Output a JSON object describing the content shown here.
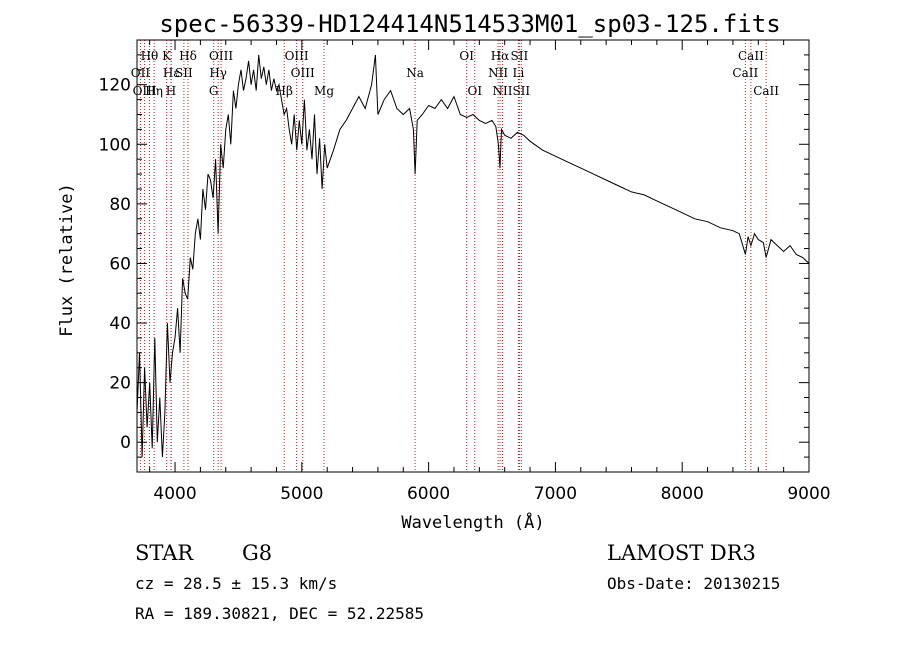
{
  "chart_data": {
    "type": "line",
    "title": "spec-56339-HD124414N514533M01_sp03-125.fits",
    "xlabel": "Wavelength (Å)",
    "ylabel": "Flux (relative)",
    "xlim": [
      3700,
      9000
    ],
    "ylim": [
      -10,
      135
    ],
    "xticks": [
      4000,
      5000,
      6000,
      7000,
      8000,
      9000
    ],
    "xtick_labels": [
      "4000",
      "5000",
      "6000",
      "7000",
      "8000",
      "9000"
    ],
    "yticks": [
      0,
      20,
      40,
      60,
      80,
      100,
      120
    ],
    "ytick_labels": [
      "0",
      "20",
      "40",
      "60",
      "80",
      "100",
      "120"
    ],
    "grid": false,
    "series": [
      {
        "color": "#000000",
        "x": [
          3700,
          3720,
          3740,
          3760,
          3780,
          3800,
          3820,
          3840,
          3860,
          3880,
          3900,
          3920,
          3940,
          3960,
          3980,
          4000,
          4020,
          4040,
          4060,
          4080,
          4100,
          4120,
          4140,
          4160,
          4180,
          4200,
          4220,
          4240,
          4260,
          4280,
          4300,
          4320,
          4340,
          4360,
          4380,
          4400,
          4420,
          4440,
          4460,
          4480,
          4500,
          4520,
          4540,
          4560,
          4580,
          4600,
          4620,
          4640,
          4660,
          4680,
          4700,
          4720,
          4740,
          4760,
          4780,
          4800,
          4820,
          4840,
          4860,
          4880,
          4900,
          4920,
          4940,
          4960,
          4980,
          5000,
          5020,
          5040,
          5060,
          5080,
          5100,
          5120,
          5140,
          5160,
          5180,
          5200,
          5250,
          5300,
          5350,
          5400,
          5450,
          5500,
          5550,
          5580,
          5600,
          5650,
          5700,
          5750,
          5800,
          5850,
          5880,
          5893,
          5910,
          5950,
          6000,
          6050,
          6100,
          6150,
          6200,
          6250,
          6300,
          6350,
          6400,
          6450,
          6500,
          6530,
          6550,
          6563,
          6575,
          6600,
          6650,
          6700,
          6750,
          6800,
          6900,
          7000,
          7100,
          7200,
          7300,
          7400,
          7500,
          7600,
          7700,
          7800,
          7900,
          8000,
          8100,
          8200,
          8300,
          8400,
          8450,
          8498,
          8520,
          8542,
          8570,
          8600,
          8640,
          8662,
          8700,
          8750,
          8800,
          8850,
          8900,
          8950,
          9000
        ],
        "y": [
          10,
          30,
          -5,
          25,
          5,
          20,
          -2,
          35,
          0,
          15,
          -5,
          10,
          40,
          20,
          30,
          35,
          45,
          30,
          55,
          50,
          48,
          62,
          58,
          70,
          75,
          68,
          85,
          78,
          90,
          88,
          82,
          95,
          70,
          100,
          92,
          105,
          110,
          100,
          118,
          112,
          120,
          125,
          118,
          122,
          128,
          120,
          125,
          118,
          130,
          122,
          126,
          120,
          125,
          118,
          122,
          118,
          120,
          115,
          110,
          112,
          105,
          100,
          110,
          98,
          108,
          100,
          115,
          98,
          105,
          95,
          110,
          90,
          102,
          85,
          100,
          92,
          98,
          105,
          108,
          112,
          116,
          112,
          120,
          130,
          110,
          115,
          118,
          112,
          110,
          112,
          105,
          90,
          108,
          110,
          113,
          112,
          115,
          112,
          116,
          110,
          109,
          110,
          108,
          107,
          108,
          106,
          100,
          92,
          105,
          103,
          102,
          104,
          103,
          101,
          98,
          96,
          94,
          92,
          90,
          88,
          86,
          84,
          83,
          81,
          79,
          77,
          75,
          74,
          72,
          71,
          70,
          63,
          69,
          66,
          70,
          68,
          67,
          62,
          68,
          66,
          64,
          66,
          63,
          62,
          60
        ]
      }
    ],
    "line_labels": [
      {
        "name": "Hδ",
        "wave": 4102,
        "row": 1
      },
      {
        "name": "K",
        "wave": 3934,
        "row": 1
      },
      {
        "name": "Hθ",
        "wave": 3798,
        "row": 1
      },
      {
        "name": "OII",
        "wave": 3727,
        "row": 2
      },
      {
        "name": "OIII",
        "wave": 3760,
        "row": 3
      },
      {
        "name": "Hη",
        "wave": 3835,
        "row": 3
      },
      {
        "name": "Hε",
        "wave": 3970,
        "row": 2
      },
      {
        "name": "SII",
        "wave": 4070,
        "row": 2
      },
      {
        "name": "H",
        "wave": 3968,
        "row": 3
      },
      {
        "name": "OIII",
        "wave": 4363,
        "row": 1
      },
      {
        "name": "Hγ",
        "wave": 4340,
        "row": 2
      },
      {
        "name": "G",
        "wave": 4305,
        "row": 3
      },
      {
        "name": "OIII",
        "wave": 4959,
        "row": 1
      },
      {
        "name": "OIII",
        "wave": 5007,
        "row": 2
      },
      {
        "name": "Hβ",
        "wave": 4861,
        "row": 3
      },
      {
        "name": "Mg",
        "wave": 5175,
        "row": 3
      },
      {
        "name": "Na",
        "wave": 5893,
        "row": 2
      },
      {
        "name": "OI",
        "wave": 6300,
        "row": 1
      },
      {
        "name": "OI",
        "wave": 6364,
        "row": 3
      },
      {
        "name": "Hα",
        "wave": 6563,
        "row": 1
      },
      {
        "name": "SII",
        "wave": 6716,
        "row": 1
      },
      {
        "name": "NII",
        "wave": 6548,
        "row": 2
      },
      {
        "name": "Li",
        "wave": 6708,
        "row": 2
      },
      {
        "name": "NII",
        "wave": 6583,
        "row": 3
      },
      {
        "name": "SII",
        "wave": 6731,
        "row": 3
      },
      {
        "name": "CaII",
        "wave": 8542,
        "row": 1
      },
      {
        "name": "CaII",
        "wave": 8498,
        "row": 2
      },
      {
        "name": "CaII",
        "wave": 8662,
        "row": 3
      }
    ],
    "line_color": "#b22222"
  },
  "info": {
    "obj_class": "STAR",
    "subclass": "G8",
    "survey": "LAMOST DR3",
    "cz": "cz = 28.5 ± 15.3 km/s",
    "obs_date": "Obs-Date: 20130215",
    "coords": "RA = 189.30821, DEC =  52.22585"
  }
}
